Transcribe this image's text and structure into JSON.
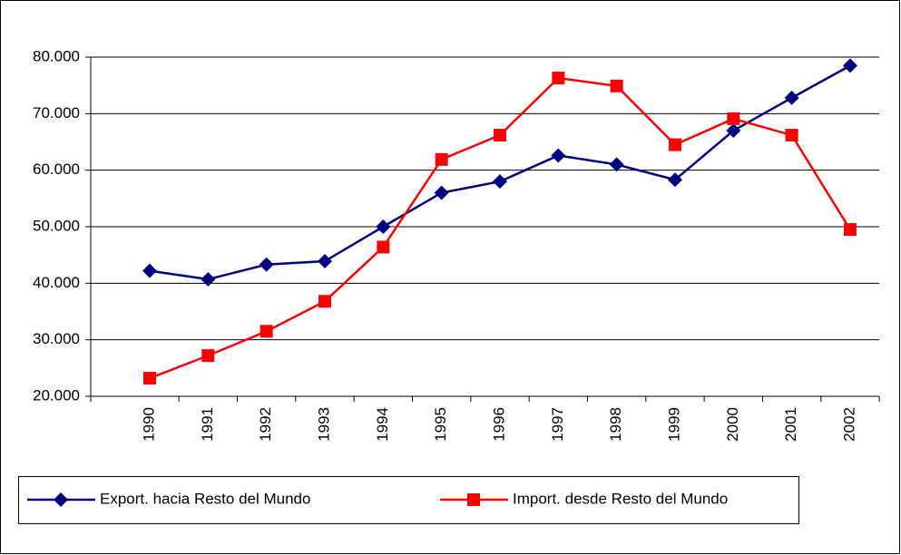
{
  "chart_data": {
    "type": "line",
    "categories": [
      "1990",
      "1991",
      "1992",
      "1993",
      "1994",
      "1995",
      "1996",
      "1997",
      "1998",
      "1999",
      "2000",
      "2001",
      "2002"
    ],
    "series": [
      {
        "name": "Export. hacia Resto del Mundo",
        "color": "#000080",
        "marker": "diamond",
        "values": [
          42.2,
          40.7,
          43.3,
          43.9,
          50.0,
          56.0,
          58.0,
          62.6,
          61.0,
          58.3,
          67.0,
          72.8,
          78.5
        ]
      },
      {
        "name": "Import. desde Resto del Mundo",
        "color": "#ff0000",
        "marker": "square",
        "values": [
          23.2,
          27.2,
          31.5,
          36.8,
          46.4,
          61.9,
          66.2,
          76.3,
          74.9,
          64.5,
          69.1,
          66.2,
          49.5
        ]
      }
    ],
    "ylim": [
      20,
      80
    ],
    "yticks": [
      {
        "value": 20,
        "label": "20.000"
      },
      {
        "value": 30,
        "label": "30.000"
      },
      {
        "value": 40,
        "label": "40.000"
      },
      {
        "value": 50,
        "label": "50.000"
      },
      {
        "value": 60,
        "label": "60.000"
      },
      {
        "value": 70,
        "label": "70.000"
      },
      {
        "value": 80,
        "label": "80.000"
      }
    ],
    "grid": true,
    "legend": "bottom"
  }
}
